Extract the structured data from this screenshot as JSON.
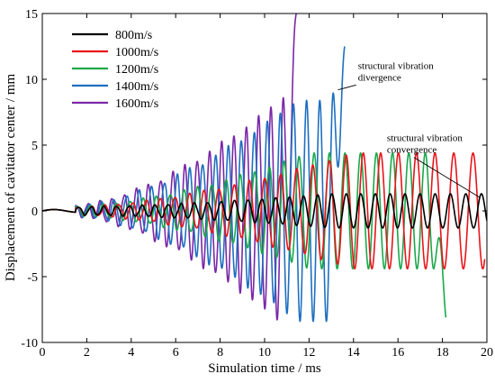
{
  "chart_data": {
    "type": "line",
    "xlabel": "Simulation time / ms",
    "ylabel": "Displacement of cavitator center / mm",
    "xlim": [
      0,
      20
    ],
    "ylim": [
      -10,
      15
    ],
    "xticks": [
      0,
      2,
      4,
      6,
      8,
      10,
      12,
      14,
      16,
      18,
      20
    ],
    "yticks": [
      -10,
      -5,
      0,
      5,
      10,
      15
    ],
    "grid": false,
    "legend_position": "top-left",
    "series": [
      {
        "name": "800m/s",
        "color": "#000000",
        "end_ms": 20,
        "amp_start": 0.3,
        "amp_peak": 1.3,
        "ramp_ms": 13,
        "freq_start_khz": 1.8,
        "freq_end_khz": 1.6,
        "onset_ms": 1.5
      },
      {
        "name": "1000m/s",
        "color": "#e8141a",
        "end_ms": 19.9,
        "amp_start": 0.3,
        "amp_peak": 4.4,
        "ramp_ms": 14,
        "freq_start_khz": 1.7,
        "freq_end_khz": 1.4,
        "onset_ms": 1.5
      },
      {
        "name": "1200m/s",
        "color": "#1aa84a",
        "end_ms": 18.15,
        "amp_start": 0.35,
        "amp_peak": 4.4,
        "ramp_ms": 12,
        "freq_start_khz": 1.75,
        "freq_end_khz": 1.5,
        "onset_ms": 1.5,
        "tail_min": -8.1
      },
      {
        "name": "1400m/s",
        "color": "#1e6fc1",
        "end_ms": 13.6,
        "amp_start": 0.4,
        "amp_peak": 8.4,
        "ramp_ms": 11.5,
        "freq_start_khz": 1.8,
        "freq_end_khz": 1.7,
        "onset_ms": 1.5,
        "tail_max": 12.5
      },
      {
        "name": "1600m/s",
        "color": "#7a27a8",
        "end_ms": 11.5,
        "amp_start": 0.45,
        "amp_peak": 8.6,
        "ramp_ms": 10.8,
        "freq_start_khz": 1.85,
        "freq_end_khz": 1.8,
        "onset_ms": 1.5,
        "tail_max": 16
      }
    ],
    "annotations": [
      {
        "lines": [
          "structural vibration",
          "divergence"
        ],
        "x": 14.2,
        "y": 10.8,
        "arrow_to": [
          13.3,
          9.2
        ]
      },
      {
        "lines": [
          "structural vibration",
          "convergence"
        ],
        "x": 15.5,
        "y": 5.3,
        "arrow_to": [
          19.7,
          1.0
        ]
      }
    ]
  }
}
